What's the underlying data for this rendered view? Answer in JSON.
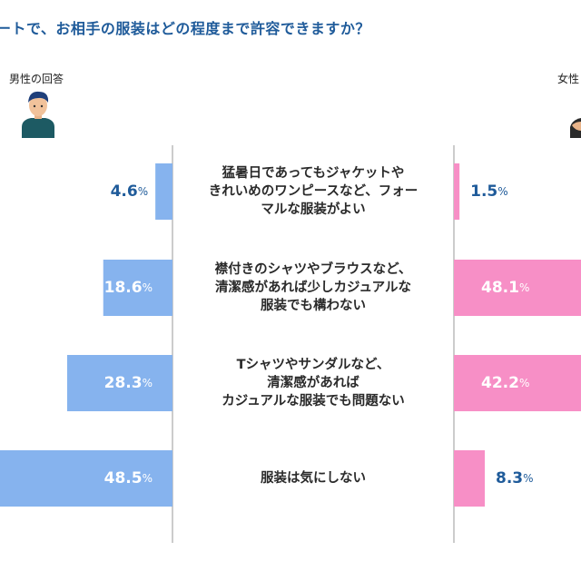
{
  "title": "ートで、お相手の服装はどの程度まで許容できますか？",
  "panels": {
    "male_label": "男性の回答",
    "female_label": "女性"
  },
  "icons": {
    "male": "man-avatar-icon",
    "female": "woman-avatar-icon"
  },
  "colors": {
    "title": "#1f5b9a",
    "male_bar": "#86b3ee",
    "female_bar": "#f78fc6",
    "dark_label": "#1f5b9a",
    "inside_label": "#ffffff",
    "divider": "#9a9a9a"
  },
  "chart_data": {
    "type": "bar",
    "orientation": "horizontal",
    "layout": "diverging",
    "unit": "%",
    "categories": [
      "猛暑日であってもジャケットや\nきれいめのワンピースなど、フォー\nマルな服装がよい",
      "襟付きのシャツやブラウスなど、\n清潔感があれば少しカジュアルな\n服装でも構わない",
      "Tシャツやサンダルなど、\n清潔感があれば\nカジュアルな服装でも問題ない",
      "服装は気にしない"
    ],
    "series": [
      {
        "name": "男性の回答",
        "side": "left",
        "values": [
          4.6,
          18.6,
          28.3,
          48.5
        ],
        "labels": [
          "4.6",
          "18.6",
          "28.3",
          "48.5"
        ]
      },
      {
        "name": "女性",
        "side": "right",
        "values": [
          1.5,
          48.1,
          42.2,
          8.3
        ],
        "labels": [
          "1.5",
          "48.1",
          "42.2",
          "8.3"
        ]
      }
    ],
    "label_suffix": "%",
    "grid": false,
    "legend": "none"
  }
}
